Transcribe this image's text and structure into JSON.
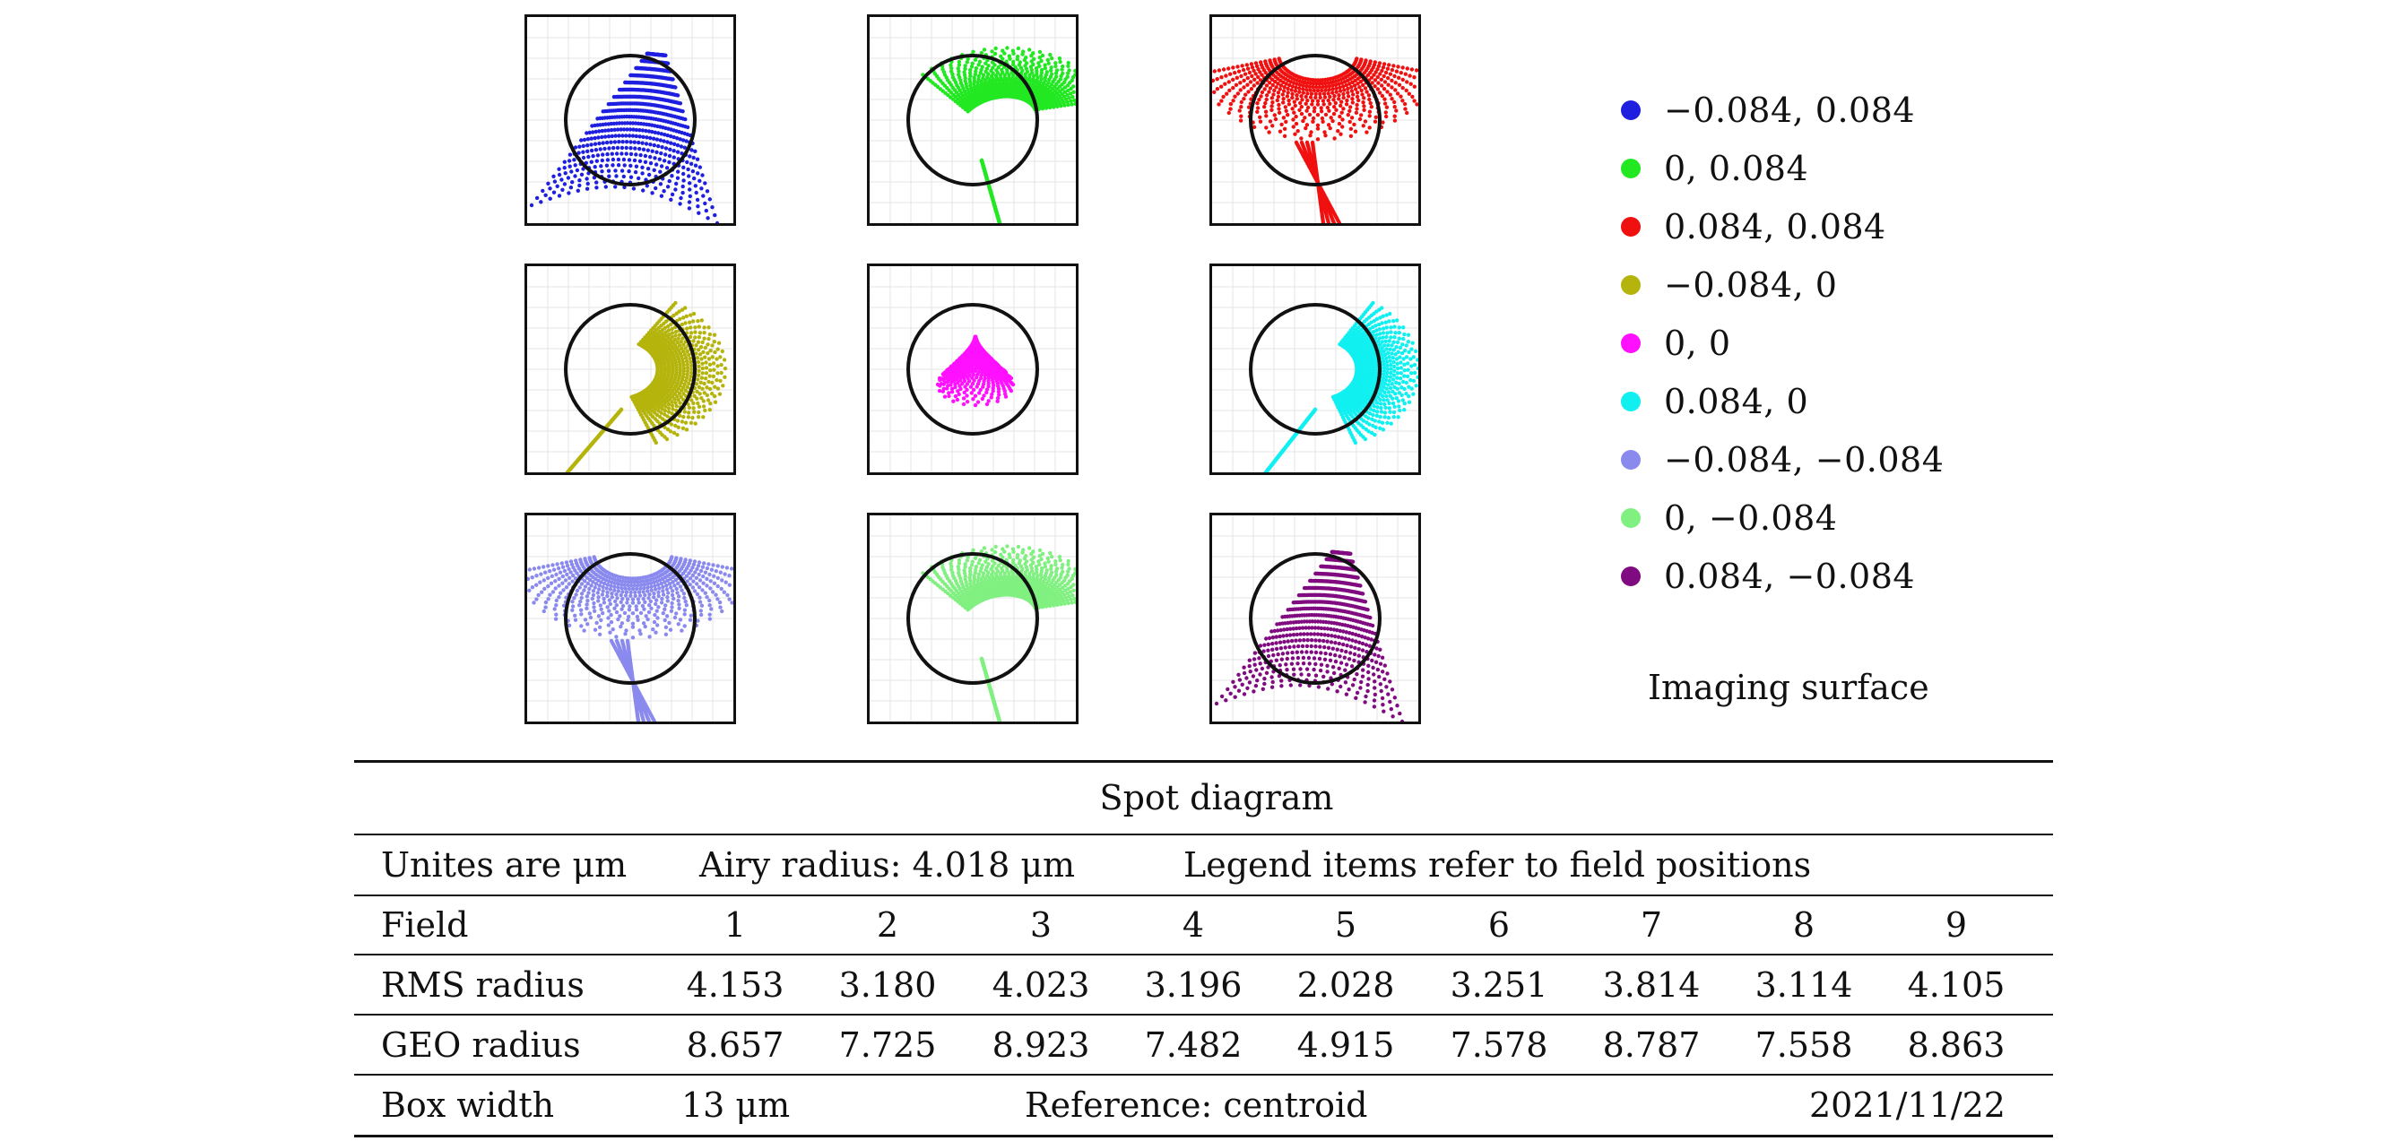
{
  "spots": [
    {
      "id": "1",
      "color": "#1f1fe0",
      "shape": "triangle-up"
    },
    {
      "id": "2",
      "color": "#22e822",
      "shape": "fan-right"
    },
    {
      "id": "3",
      "color": "#f01010",
      "shape": "fan-down"
    },
    {
      "id": "4",
      "color": "#b4b40c",
      "shape": "fan-left"
    },
    {
      "id": "5",
      "color": "#ff10ff",
      "shape": "drop"
    },
    {
      "id": "6",
      "color": "#10f0f0",
      "shape": "fan-left-mirror"
    },
    {
      "id": "7",
      "color": "#8a8aee",
      "shape": "fan-down"
    },
    {
      "id": "8",
      "color": "#80f080",
      "shape": "fan-right"
    },
    {
      "id": "9",
      "color": "#800a80",
      "shape": "triangle-up"
    }
  ],
  "legend": {
    "items": [
      {
        "label": "−0.084, 0.084",
        "color": "#1f1fe0"
      },
      {
        "label": "0, 0.084",
        "color": "#22e822"
      },
      {
        "label": "0.084, 0.084",
        "color": "#f01010"
      },
      {
        "label": "−0.084, 0",
        "color": "#b4b40c"
      },
      {
        "label": "0, 0",
        "color": "#ff10ff"
      },
      {
        "label": "0.084, 0",
        "color": "#10f0f0"
      },
      {
        "label": "−0.084, −0.084",
        "color": "#8a8aee"
      },
      {
        "label": "0, −0.084",
        "color": "#80f080"
      },
      {
        "label": "0.084, −0.084",
        "color": "#800a80"
      }
    ],
    "surface_label": "Imaging surface"
  },
  "table": {
    "title": "Spot diagram",
    "units": "Unites are μm",
    "airy": "Airy radius: 4.018 μm",
    "note": "Legend items refer to field positions",
    "field_label": "Field",
    "fields": [
      "1",
      "2",
      "3",
      "4",
      "5",
      "6",
      "7",
      "8",
      "9"
    ],
    "rms_label": "RMS radius",
    "rms": [
      "4.153",
      "3.180",
      "4.023",
      "3.196",
      "2.028",
      "3.251",
      "3.814",
      "3.114",
      "4.105"
    ],
    "geo_label": "GEO radius",
    "geo": [
      "8.657",
      "7.725",
      "8.923",
      "7.482",
      "4.915",
      "7.578",
      "8.787",
      "7.558",
      "8.863"
    ],
    "box_label": "Box width",
    "box_value": "13 μm",
    "reference": "Reference: centroid",
    "date": "2021/11/22"
  }
}
